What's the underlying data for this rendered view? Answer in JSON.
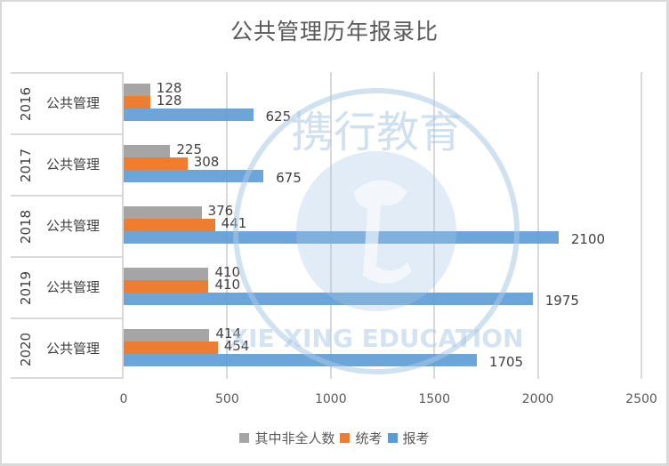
{
  "chart_data": {
    "type": "bar",
    "orientation": "horizontal",
    "title": "公共管理历年报录比",
    "categories": [
      {
        "year": "2016",
        "label": "公共管理"
      },
      {
        "year": "2017",
        "label": "公共管理"
      },
      {
        "year": "2018",
        "label": "公共管理"
      },
      {
        "year": "2019",
        "label": "公共管理"
      },
      {
        "year": "2020",
        "label": "公共管理"
      }
    ],
    "series": [
      {
        "name": "其中非全人数",
        "color": "#a5a5a5",
        "values": [
          128,
          225,
          376,
          410,
          414
        ]
      },
      {
        "name": "统考",
        "color": "#ed7d31",
        "values": [
          128,
          308,
          441,
          410,
          454
        ]
      },
      {
        "name": "报考",
        "color": "#5b9bd5",
        "values": [
          625,
          675,
          2100,
          1975,
          1705
        ]
      }
    ],
    "xlim": [
      0,
      2500
    ],
    "xticks": [
      "0",
      "500",
      "1000",
      "1500",
      "2000",
      "2500"
    ],
    "xlabel": "",
    "ylabel": "",
    "grid": true,
    "legend_position": "bottom",
    "data_labels": true
  },
  "watermark": {
    "text_cn": "携行教育",
    "text_en": "XIE XING EDUCATION"
  }
}
